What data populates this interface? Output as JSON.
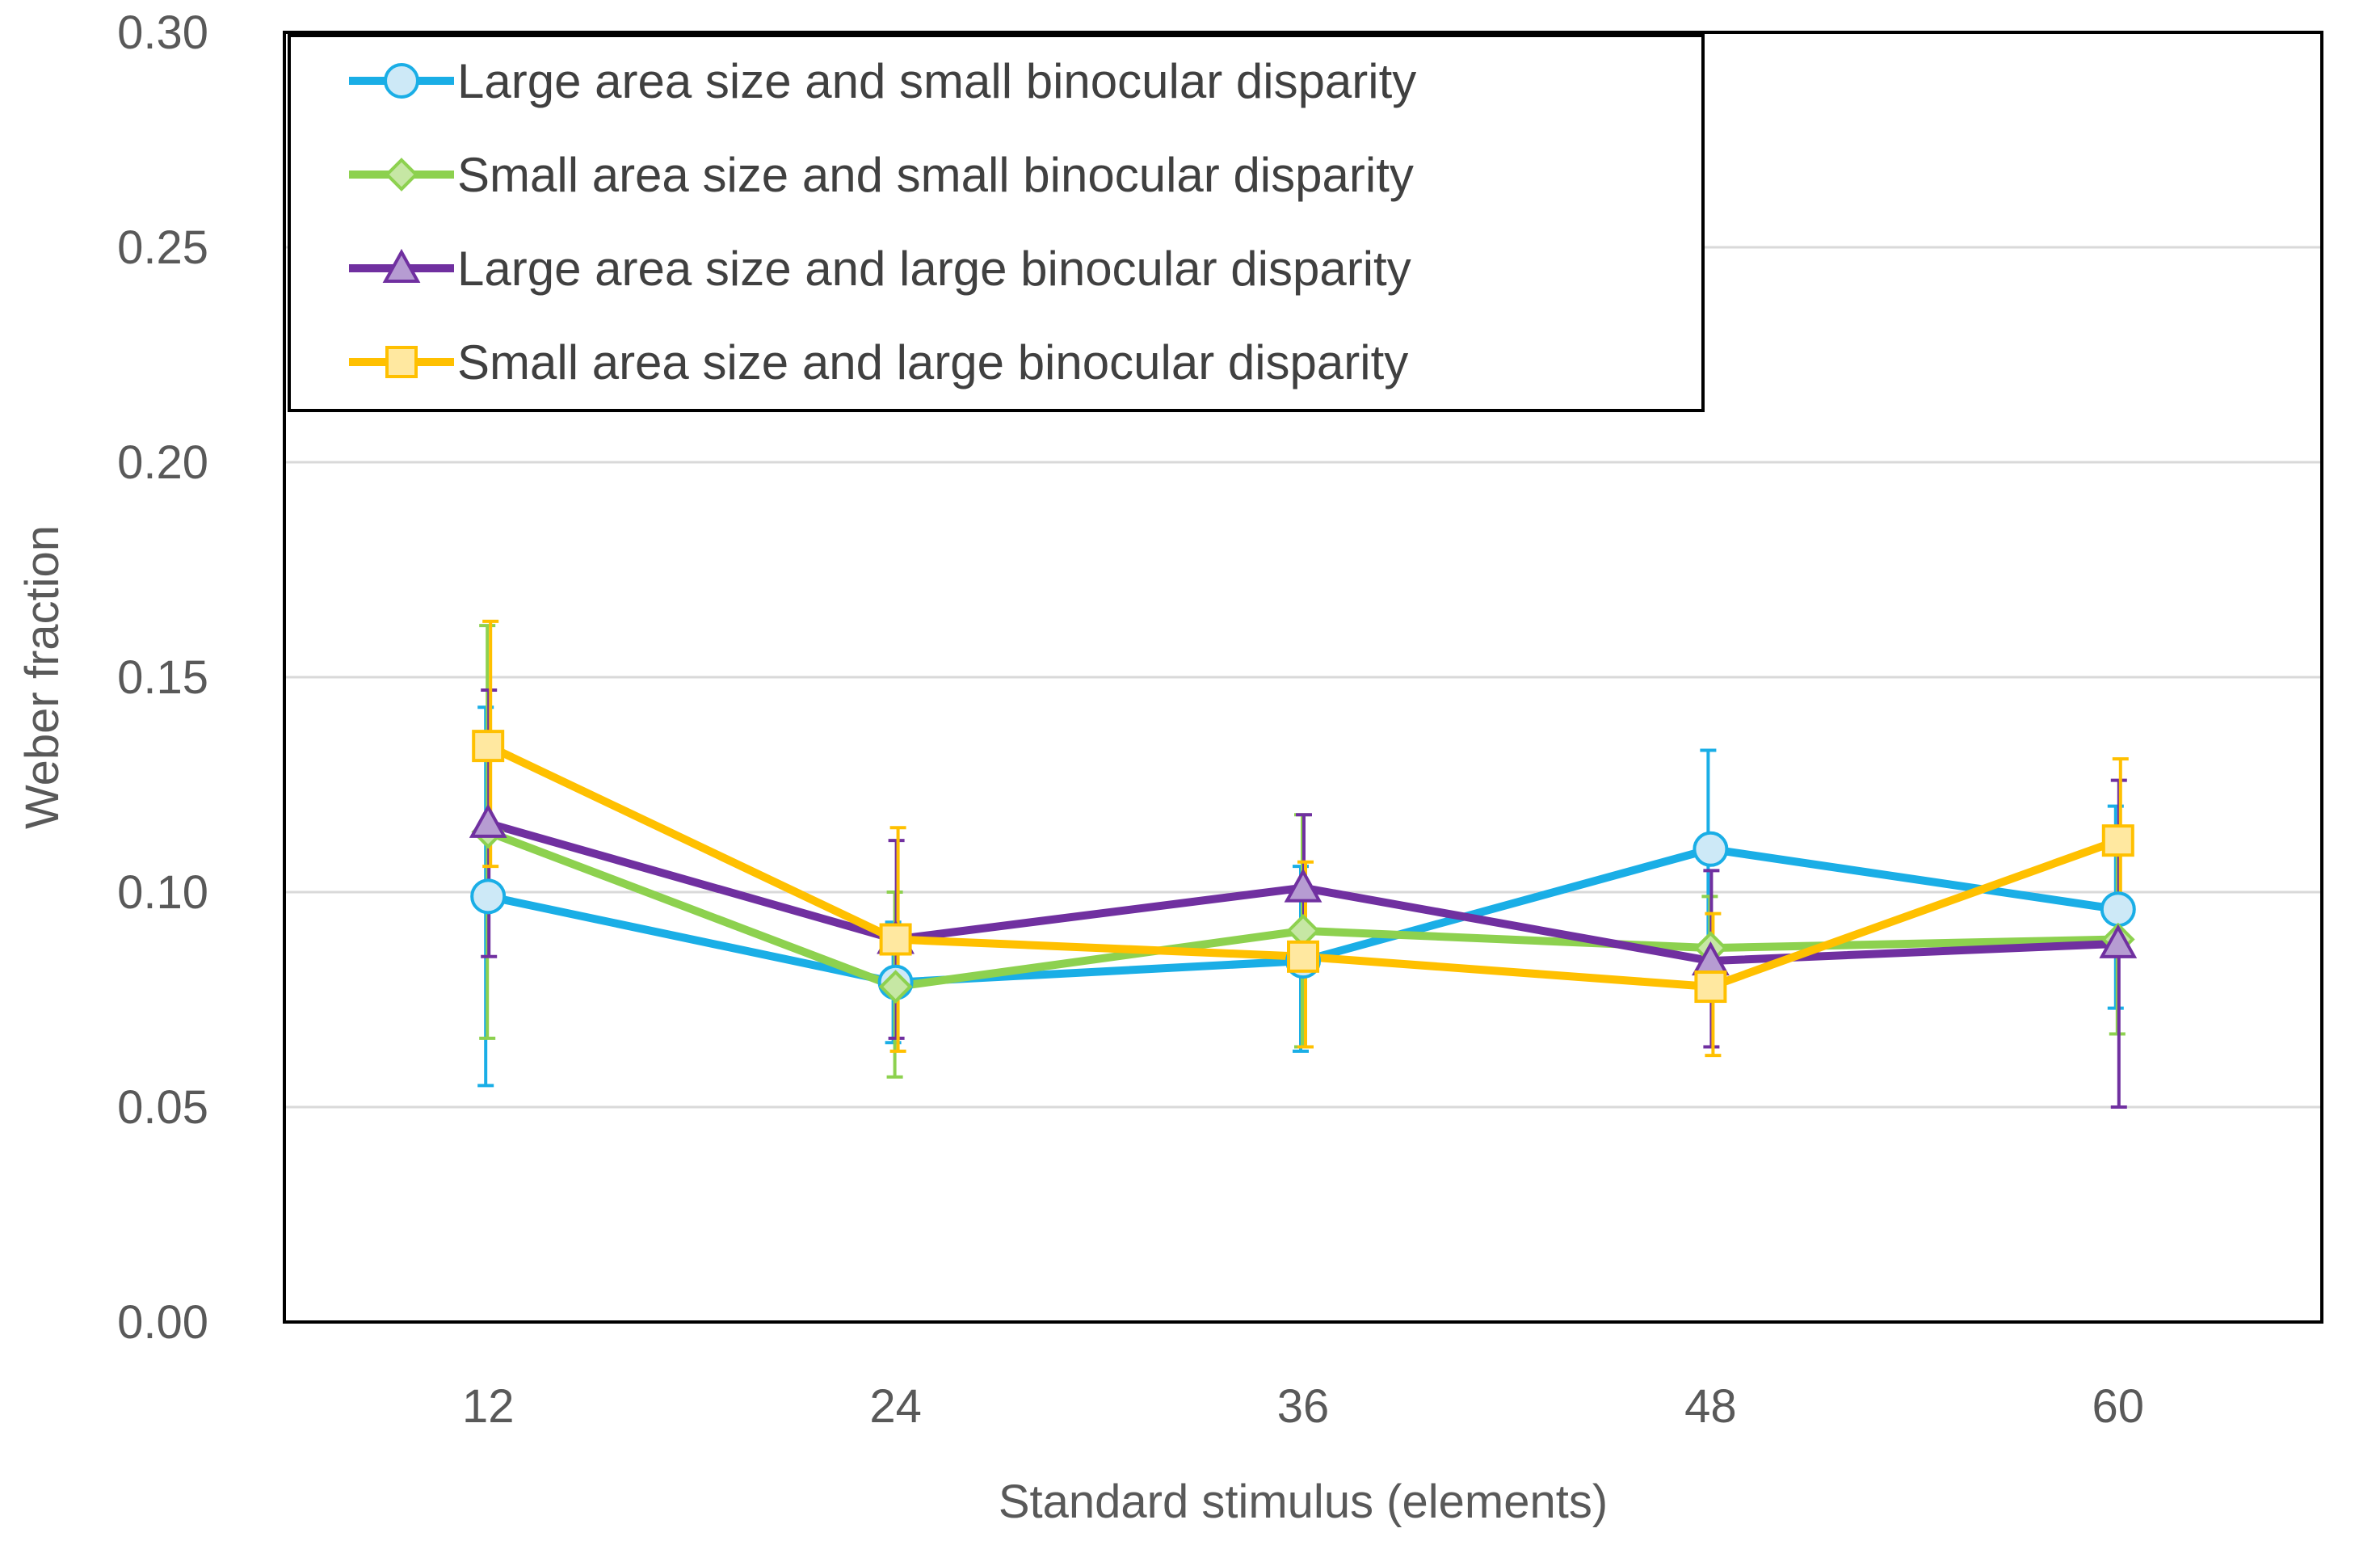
{
  "chart_data": {
    "type": "line",
    "title": "",
    "xlabel": "Standard stimulus (elements)",
    "ylabel": "Weber fraction",
    "categories": [
      "12",
      "24",
      "36",
      "48",
      "60"
    ],
    "ylim": [
      0,
      0.3
    ],
    "yticks": [
      "0.00",
      "0.05",
      "0.10",
      "0.15",
      "0.20",
      "0.25",
      "0.30"
    ],
    "grid": true,
    "legend_position": "top-left",
    "series": [
      {
        "name": "Large area size and small binocular disparity",
        "color": "#1AAEE6",
        "marker": "circle",
        "values": [
          0.099,
          0.079,
          0.084,
          0.11,
          0.096
        ],
        "err_low": [
          0.055,
          0.065,
          0.063,
          0.087,
          0.073
        ],
        "err_high": [
          0.143,
          0.093,
          0.106,
          0.133,
          0.12
        ]
      },
      {
        "name": "Small area size and small binocular disparity",
        "color": "#8DD14F",
        "marker": "diamond",
        "values": [
          0.114,
          0.078,
          0.091,
          0.087,
          0.089
        ],
        "err_low": [
          0.066,
          0.057,
          0.064,
          0.075,
          0.067
        ],
        "err_high": [
          0.162,
          0.1,
          0.118,
          0.099,
          0.111
        ]
      },
      {
        "name": "Large area size and large binocular disparity",
        "color": "#7030A0",
        "marker": "triangle",
        "values": [
          0.116,
          0.089,
          0.101,
          0.084,
          0.088
        ],
        "err_low": [
          0.085,
          0.066,
          0.084,
          0.064,
          0.05
        ],
        "err_high": [
          0.147,
          0.112,
          0.118,
          0.105,
          0.126
        ]
      },
      {
        "name": "Small area size and large binocular disparity",
        "color": "#FFC000",
        "marker": "square",
        "values": [
          0.134,
          0.089,
          0.085,
          0.078,
          0.112
        ],
        "err_low": [
          0.106,
          0.063,
          0.064,
          0.062,
          0.094
        ],
        "err_high": [
          0.163,
          0.115,
          0.107,
          0.095,
          0.131
        ]
      }
    ]
  }
}
